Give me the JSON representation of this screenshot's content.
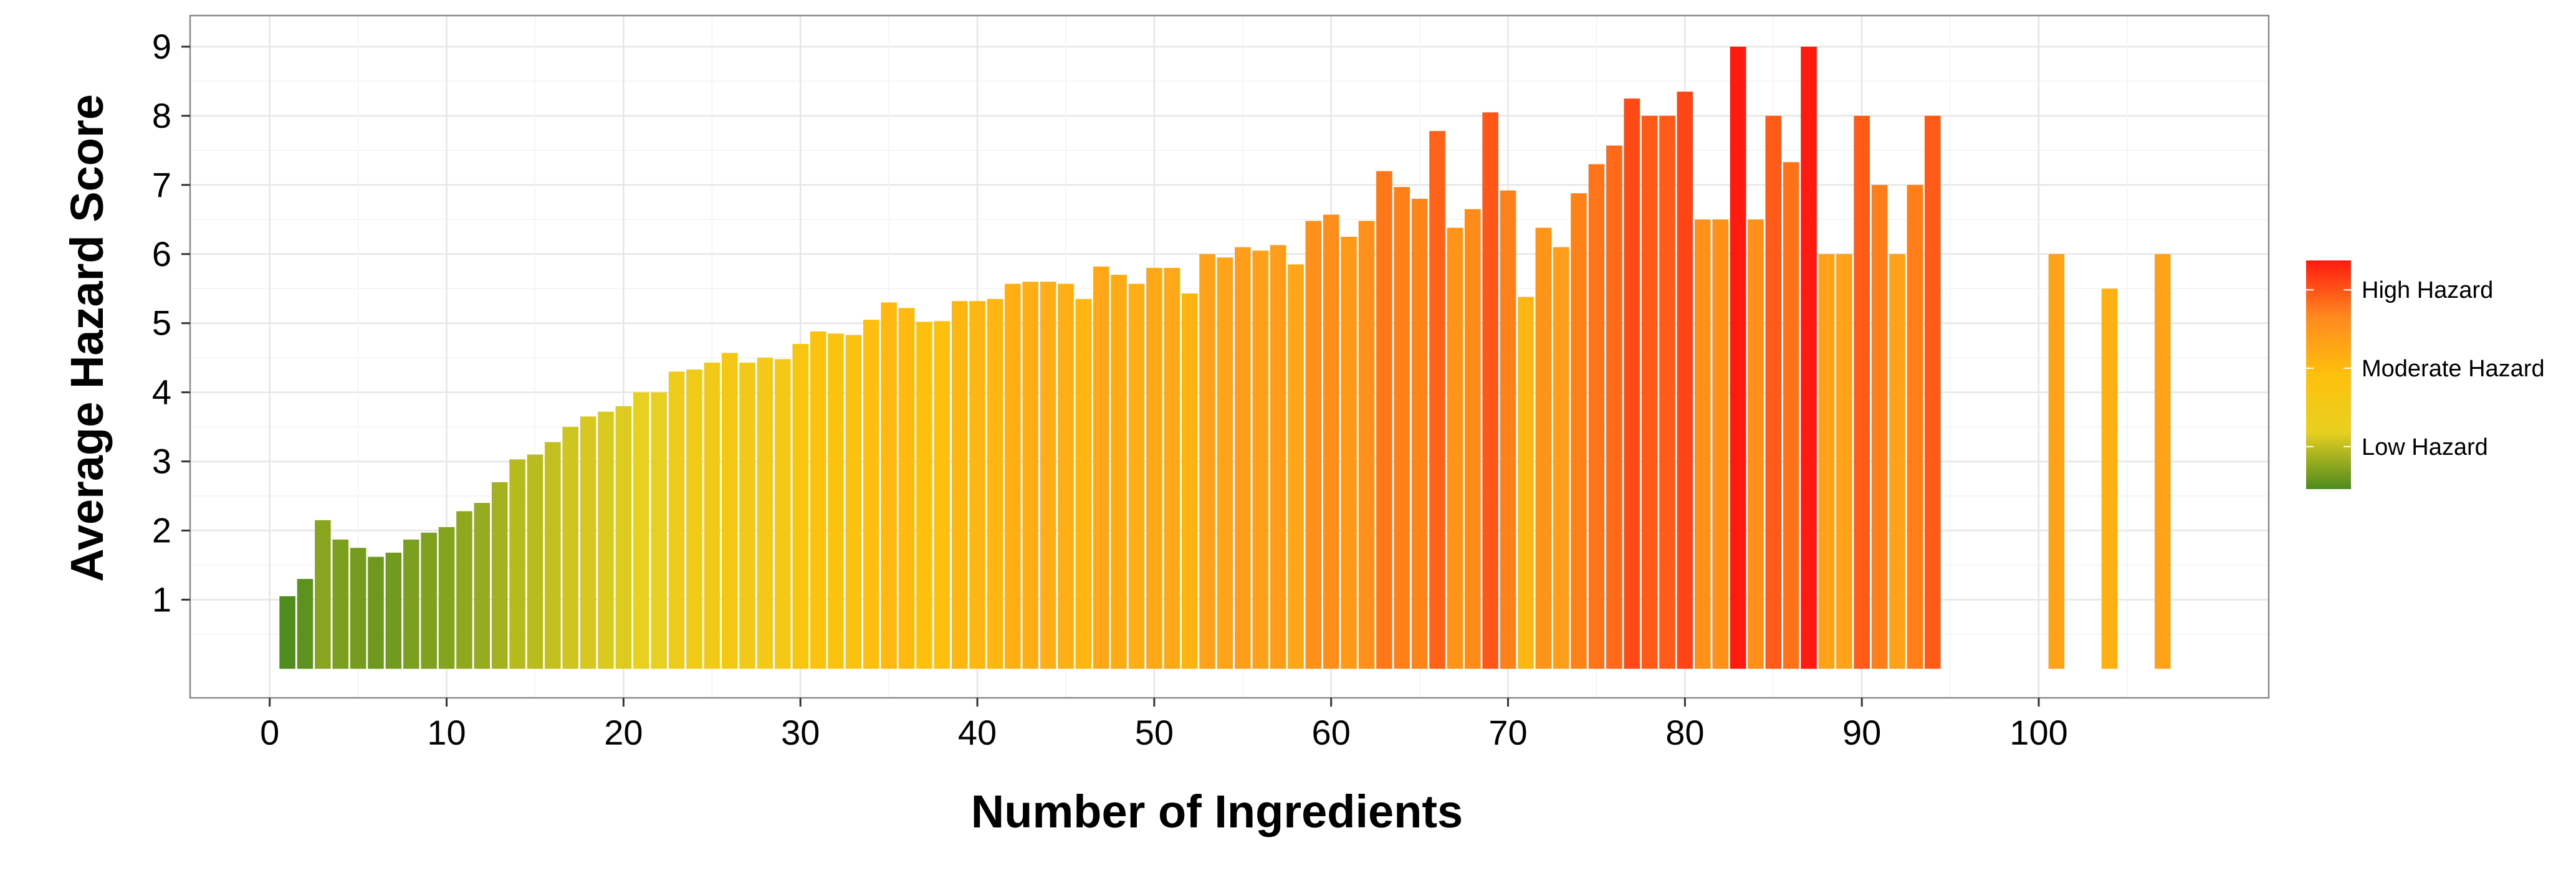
{
  "chart_data": {
    "type": "bar",
    "title": "",
    "xlabel": "Number of Ingredients",
    "ylabel": "Average Hazard Score",
    "xlim": [
      -4.5,
      113
    ],
    "ylim": [
      -0.42,
      9.45
    ],
    "x_ticks": [
      0,
      10,
      20,
      30,
      40,
      50,
      60,
      70,
      80,
      90,
      100
    ],
    "y_ticks": [
      1,
      2,
      3,
      4,
      5,
      6,
      7,
      8,
      9
    ],
    "grid": true,
    "legend": {
      "position": "right",
      "labels": [
        "High Hazard",
        "Moderate Hazard",
        "Low Hazard"
      ],
      "label_values": [
        7.35,
        6.15,
        4.95
      ],
      "range": [
        4.3,
        7.8
      ],
      "colors": [
        "#4E8B1E",
        "#E8D020",
        "#FFC00D",
        "#FF8A1F",
        "#FF1A10"
      ]
    },
    "color_scale": {
      "stops": [
        {
          "value": 1.0,
          "color": "#4E8B1E"
        },
        {
          "value": 4.0,
          "color": "#E8D020"
        },
        {
          "value": 5.0,
          "color": "#FFC00D"
        },
        {
          "value": 6.0,
          "color": "#FFA21A"
        },
        {
          "value": 8.0,
          "color": "#FF5A18"
        },
        {
          "value": 9.0,
          "color": "#FF1A10"
        }
      ]
    },
    "x": [
      1,
      2,
      3,
      4,
      5,
      6,
      7,
      8,
      9,
      10,
      11,
      12,
      13,
      14,
      15,
      16,
      17,
      18,
      19,
      20,
      21,
      22,
      23,
      24,
      25,
      26,
      27,
      28,
      29,
      30,
      31,
      32,
      33,
      34,
      35,
      36,
      37,
      38,
      39,
      40,
      41,
      42,
      43,
      44,
      45,
      46,
      47,
      48,
      49,
      50,
      51,
      52,
      53,
      54,
      55,
      56,
      57,
      58,
      59,
      60,
      61,
      62,
      63,
      64,
      65,
      66,
      67,
      68,
      69,
      70,
      71,
      72,
      73,
      74,
      75,
      76,
      77,
      78,
      79,
      80,
      81,
      82,
      83,
      84,
      85,
      86,
      87,
      88,
      89,
      90,
      91,
      92,
      93,
      94,
      101,
      104,
      107
    ],
    "values": [
      1.05,
      1.3,
      2.15,
      1.87,
      1.75,
      1.62,
      1.68,
      1.87,
      1.97,
      2.05,
      2.28,
      2.4,
      2.7,
      3.03,
      3.1,
      3.28,
      3.5,
      3.65,
      3.72,
      3.8,
      4.0,
      4.0,
      4.3,
      4.33,
      4.43,
      4.57,
      4.43,
      4.5,
      4.48,
      4.7,
      4.88,
      4.85,
      4.83,
      5.05,
      5.3,
      5.22,
      5.02,
      5.03,
      5.32,
      5.32,
      5.35,
      5.57,
      5.6,
      5.6,
      5.57,
      5.35,
      5.82,
      5.7,
      5.57,
      5.8,
      5.8,
      5.43,
      6.0,
      5.95,
      6.1,
      6.05,
      6.13,
      5.85,
      6.48,
      6.57,
      6.25,
      6.48,
      7.2,
      6.97,
      6.8,
      7.78,
      6.38,
      6.65,
      8.05,
      6.92,
      5.38,
      6.38,
      6.1,
      6.88,
      7.3,
      7.57,
      8.25,
      8.0,
      8.0,
      8.35,
      6.5,
      6.5,
      9.0,
      6.5,
      8.0,
      7.33,
      9.0,
      6.0,
      6.0,
      8.0,
      7.0,
      6.0,
      7.0,
      8.0,
      6.0,
      5.5,
      6.0
    ]
  }
}
